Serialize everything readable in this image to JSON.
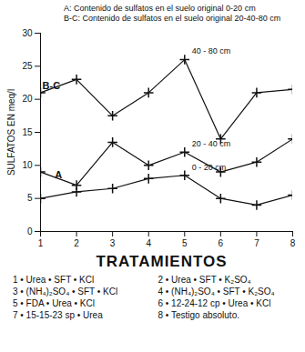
{
  "chart_data": {
    "type": "line",
    "notes": [
      "A: Contenido de sulfatos en el suelo original  0-20 cm",
      "B-C: Contenido de sulfatos en el suelo original 20-40-80 cm"
    ],
    "x_label": "TRATAMIENTOS",
    "y_label": "SULFATOS EN meq/l",
    "x": [
      1,
      2,
      3,
      4,
      5,
      6,
      7,
      8
    ],
    "series": [
      {
        "name": "40 - 80 cm",
        "color": "#111111",
        "marker": "plus",
        "values": [
          21,
          23,
          17.5,
          21,
          26,
          14,
          21,
          21.5
        ]
      },
      {
        "name": "20 - 40 cm",
        "color": "#111111",
        "marker": "plus",
        "values": [
          9,
          7,
          13.5,
          10,
          12,
          9,
          10.5,
          14
        ]
      },
      {
        "name": "0 - 20 cm",
        "color": "#111111",
        "marker": "plus",
        "values": [
          5,
          6,
          6.5,
          8,
          8.5,
          5,
          4,
          5.5
        ]
      }
    ],
    "annotations": [
      {
        "text": "B-C",
        "x": 1.3,
        "y": 22
      },
      {
        "text": "A",
        "x": 1.5,
        "y": 8.5
      }
    ],
    "xlim": [
      1,
      8
    ],
    "xticks": [
      1,
      2,
      3,
      4,
      5,
      6,
      7,
      8
    ],
    "ylim": [
      0,
      30
    ],
    "yticks": [
      0,
      5,
      10,
      15,
      20,
      25,
      30
    ],
    "grid": false,
    "treatments": [
      "1 • Urea • SFT • KCl",
      "2 • Urea • SFT • K₂SO₄",
      "3 • (NH₄)₂SO₄ • SFT • KCl",
      "4 • (NH₄)₂SO₄ • SFT • K₂SO₄",
      "5 • FDA • Urea • KCl",
      "6 • 12-24-12 cp • Urea • KCl",
      "7 • 15-15-23 sp • Urea",
      "8 • Testigo absoluto."
    ]
  }
}
